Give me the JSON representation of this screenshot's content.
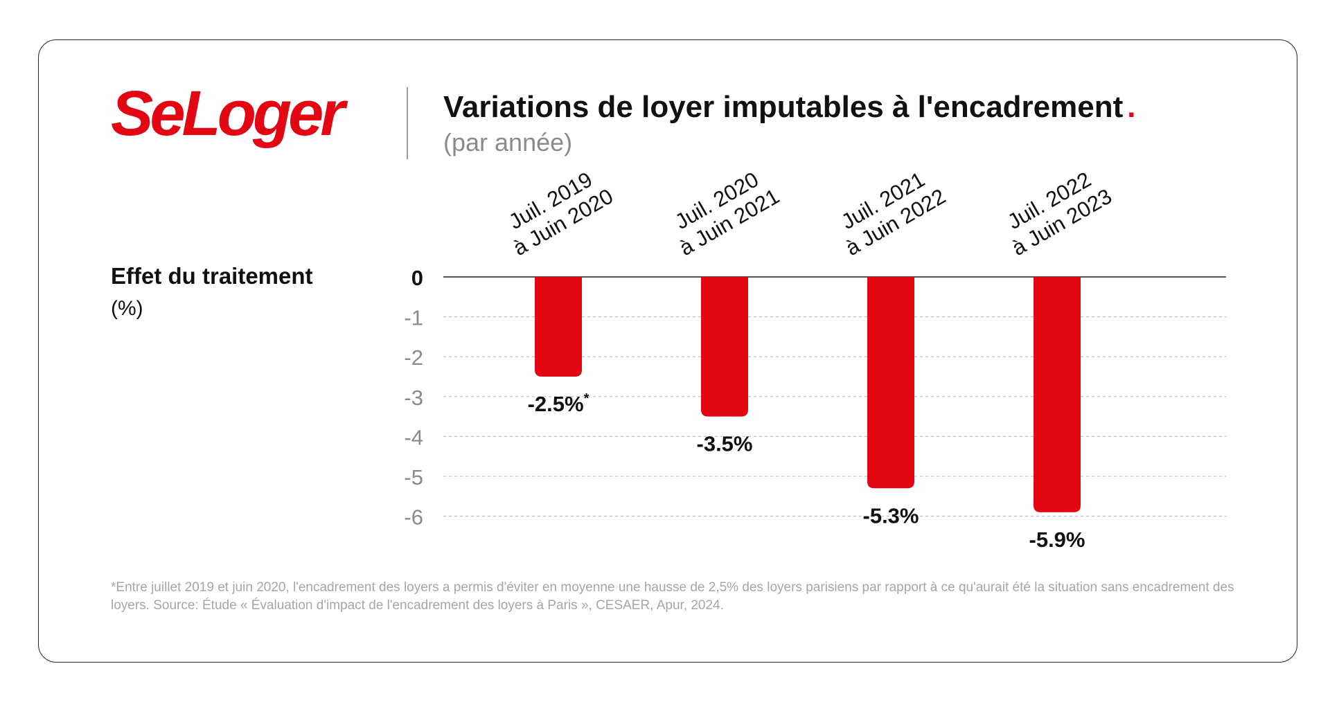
{
  "brand": {
    "name": "SeLoger",
    "accent": "#e30613"
  },
  "header": {
    "title": "Variations de loyer imputables à l'encadrement",
    "title_dot": ".",
    "subtitle": "(par année)"
  },
  "y_axis_label": {
    "main": "Effet du traitement",
    "unit": "(%)"
  },
  "chart_data": {
    "type": "bar",
    "categories": [
      [
        "Juil. 2019",
        "à Juin 2020"
      ],
      [
        "Juil. 2020",
        "à Juin 2021"
      ],
      [
        "Juil. 2021",
        "à Juin 2022"
      ],
      [
        "Juil. 2022",
        "à Juin 2023"
      ]
    ],
    "values": [
      -2.5,
      -3.5,
      -5.3,
      -5.9
    ],
    "data_labels": [
      "-2.5%",
      "-3.5%",
      "-5.3%",
      "-5.9%"
    ],
    "data_label_marks": [
      "*",
      "",
      "",
      ""
    ],
    "ylim": [
      -6,
      0
    ],
    "yticks": [
      "0",
      "-1",
      "-2",
      "-3",
      "-4",
      "-5",
      "-6"
    ],
    "ytick_values": [
      0,
      -1,
      -2,
      -3,
      -4,
      -5,
      -6
    ],
    "grid": true,
    "bar_color": "#e30613",
    "grid_color": "#c8c8c8",
    "zero_line_color": "#555555"
  },
  "footnote": "*Entre juillet 2019 et juin 2020, l'encadrement des loyers a permis d'éviter en moyenne une hausse de 2,5% des loyers parisiens par rapport à ce qu'aurait été la situation sans encadrement des loyers. Source: Étude « Évaluation d'impact de l'encadrement des loyers à Paris », CESAER, Apur, 2024."
}
